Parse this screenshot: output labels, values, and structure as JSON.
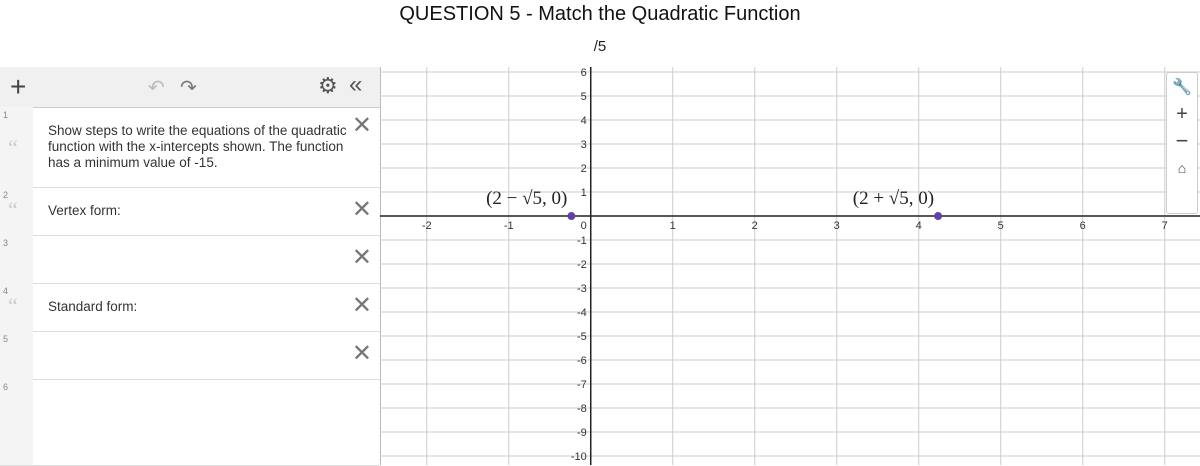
{
  "header": {
    "title": "QUESTION 5 - Match the Quadratic Function",
    "score": "/5"
  },
  "expressions": [
    {
      "index": "1",
      "text": "Show steps to write the equations of the quadratic function with the x-intercepts shown. The function has a minimum value of -15."
    },
    {
      "index": "2",
      "text": "Vertex form:"
    },
    {
      "index": "3"
    },
    {
      "index": "4",
      "text": "Standard form:"
    },
    {
      "index": "5"
    },
    {
      "index": "6"
    }
  ],
  "graph": {
    "xlim": [
      -2.57,
      7.43
    ],
    "ylim": [
      -10.375,
      6.21
    ],
    "xticks": [
      -2,
      -1,
      1,
      2,
      3,
      4,
      5,
      6,
      7
    ],
    "yticks": [
      6,
      5,
      4,
      3,
      2,
      1,
      0,
      -1,
      -2,
      -3,
      -4,
      -5,
      -6,
      -7,
      -8,
      -9,
      -10
    ],
    "grid": true,
    "points": [
      {
        "label": "(2 − √5, 0)",
        "x": -0.236,
        "y": 0
      },
      {
        "label": "(2 + √5, 0)",
        "x": 4.236,
        "y": 0
      }
    ]
  }
}
